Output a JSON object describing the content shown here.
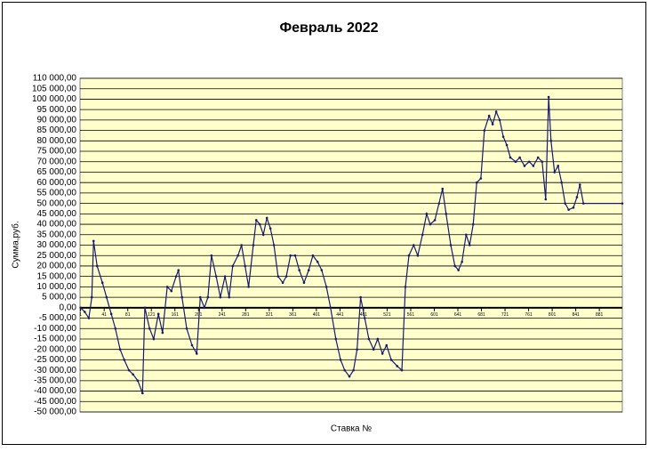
{
  "chart_data": {
    "type": "line",
    "title": "Февраль 2022",
    "y_label": "Сумма,руб.",
    "x_label": "Ставка №",
    "color": "#1a1a6e",
    "grid": true,
    "plot_background": "#ffffcc",
    "x": [
      1,
      8,
      15,
      20,
      23,
      29,
      38,
      45,
      53,
      60,
      68,
      75,
      83,
      90,
      98,
      106,
      110,
      118,
      125,
      133,
      140,
      148,
      155,
      163,
      167,
      173,
      181,
      190,
      198,
      204,
      211,
      217,
      223,
      231,
      238,
      246,
      253,
      259,
      268,
      274,
      280,
      286,
      294,
      299,
      305,
      311,
      317,
      323,
      329,
      336,
      344,
      350,
      357,
      365,
      372,
      380,
      388,
      395,
      403,
      410,
      418,
      425,
      434,
      442,
      449,
      457,
      464,
      470,
      476,
      483,
      490,
      498,
      505,
      513,
      520,
      528,
      538,
      546,
      552,
      558,
      566,
      573,
      581,
      588,
      594,
      602,
      609,
      615,
      621,
      629,
      636,
      642,
      648,
      655,
      661,
      667,
      673,
      680,
      686,
      694,
      700,
      706,
      712,
      718,
      724,
      730,
      739,
      746,
      754,
      762,
      769,
      777,
      784,
      790,
      795,
      799,
      805,
      811,
      817,
      823,
      829,
      837,
      843,
      848,
      854,
      920
    ],
    "values": [
      0,
      -2000,
      -5000,
      5000,
      32000,
      20000,
      12000,
      5000,
      -3000,
      -10000,
      -20000,
      -25000,
      -30000,
      -32000,
      -35000,
      -41000,
      0,
      -10000,
      -15000,
      -3000,
      -12000,
      10000,
      8000,
      15000,
      18000,
      5000,
      -10000,
      -18000,
      -22000,
      5000,
      0,
      5000,
      25000,
      15000,
      5000,
      15000,
      5000,
      20000,
      25000,
      30000,
      20000,
      10000,
      30000,
      42000,
      40000,
      35000,
      43000,
      38000,
      30000,
      15000,
      12000,
      15000,
      25000,
      25000,
      18000,
      12000,
      18000,
      25000,
      22000,
      18000,
      10000,
      0,
      -15000,
      -25000,
      -30000,
      -33000,
      -30000,
      -20000,
      5000,
      -5000,
      -15000,
      -20000,
      -15000,
      -22000,
      -18000,
      -25000,
      -28000,
      -30000,
      10000,
      25000,
      30000,
      25000,
      35000,
      45000,
      40000,
      42000,
      50000,
      57000,
      45000,
      30000,
      20000,
      18000,
      22000,
      35000,
      30000,
      40000,
      60000,
      62000,
      85000,
      92000,
      88000,
      94000,
      90000,
      82000,
      78000,
      72000,
      70000,
      72000,
      68000,
      70000,
      68000,
      72000,
      70000,
      52000,
      101000,
      80000,
      65000,
      68000,
      60000,
      50000,
      47000,
      48000,
      53000,
      59000,
      50000,
      50000
    ],
    "xlim": [
      0,
      920
    ],
    "xticks": [
      1,
      41,
      81,
      121,
      161,
      201,
      241,
      281,
      321,
      361,
      401,
      441,
      481,
      521,
      561,
      601,
      641,
      681,
      721,
      761,
      801,
      841,
      881
    ],
    "ylim": [
      -50000,
      110000
    ],
    "yticks": [
      {
        "value": -50000,
        "label": "-50 000,00"
      },
      {
        "value": -45000,
        "label": "-45 000,00"
      },
      {
        "value": -40000,
        "label": "-40 000,00"
      },
      {
        "value": -35000,
        "label": "-35 000,00"
      },
      {
        "value": -30000,
        "label": "-30 000,00"
      },
      {
        "value": -25000,
        "label": "-25 000,00"
      },
      {
        "value": -20000,
        "label": "-20 000,00"
      },
      {
        "value": -15000,
        "label": "-15 000,00"
      },
      {
        "value": -10000,
        "label": "-10 000,00"
      },
      {
        "value": -5000,
        "label": "-5 000,00"
      },
      {
        "value": 0,
        "label": "0,00"
      },
      {
        "value": 5000,
        "label": "5 000,00"
      },
      {
        "value": 10000,
        "label": "10 000,00"
      },
      {
        "value": 15000,
        "label": "15 000,00"
      },
      {
        "value": 20000,
        "label": "20 000,00"
      },
      {
        "value": 25000,
        "label": "25 000,00"
      },
      {
        "value": 30000,
        "label": "30 000,00"
      },
      {
        "value": 35000,
        "label": "35 000,00"
      },
      {
        "value": 40000,
        "label": "40 000,00"
      },
      {
        "value": 45000,
        "label": "45 000,00"
      },
      {
        "value": 50000,
        "label": "50 000,00"
      },
      {
        "value": 55000,
        "label": "55 000,00"
      },
      {
        "value": 60000,
        "label": "60 000,00"
      },
      {
        "value": 65000,
        "label": "65 000,00"
      },
      {
        "value": 70000,
        "label": "70 000,00"
      },
      {
        "value": 75000,
        "label": "75 000,00"
      },
      {
        "value": 80000,
        "label": "80 000,00"
      },
      {
        "value": 85000,
        "label": "85 000,00"
      },
      {
        "value": 90000,
        "label": "90 000,00"
      },
      {
        "value": 95000,
        "label": "95 000,00"
      },
      {
        "value": 100000,
        "label": "100 000,00"
      },
      {
        "value": 105000,
        "label": "105 000,00"
      },
      {
        "value": 110000,
        "label": "110 000,00"
      }
    ]
  }
}
